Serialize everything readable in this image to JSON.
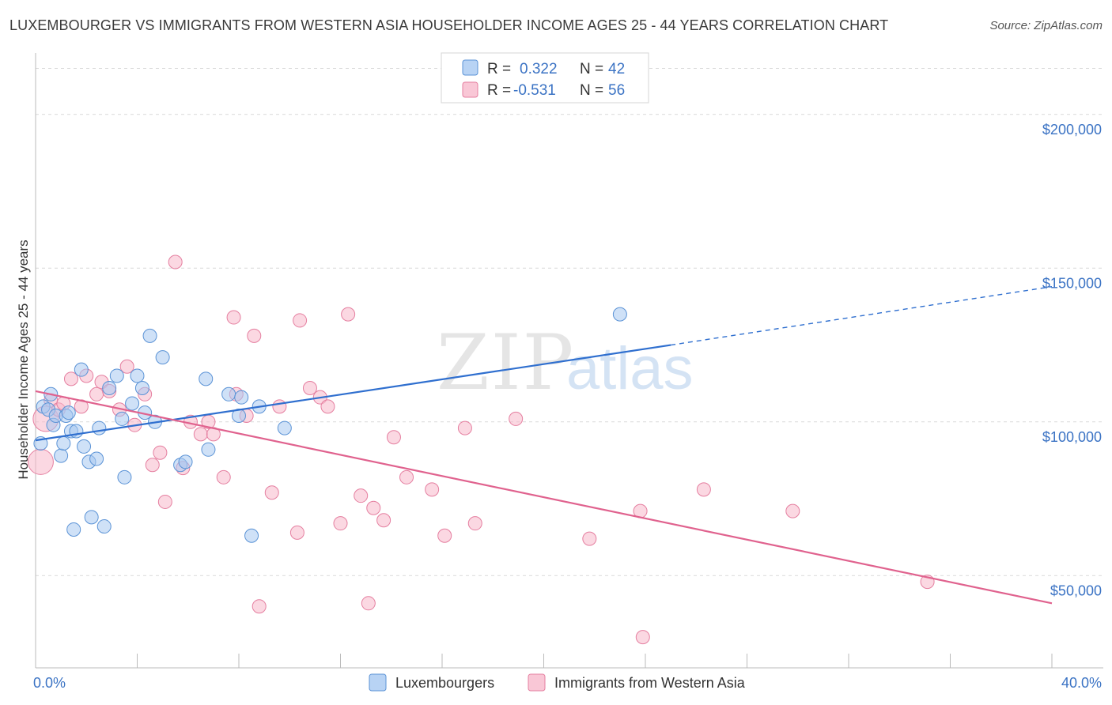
{
  "title": "LUXEMBOURGER VS IMMIGRANTS FROM WESTERN ASIA HOUSEHOLDER INCOME AGES 25 - 44 YEARS CORRELATION CHART",
  "source": "Source: ZipAtlas.com",
  "watermark": {
    "zip": "ZIP",
    "atlas": "atlas"
  },
  "legend": {
    "rows": [
      {
        "r_label": "R =",
        "r_value": "0.322",
        "n_label": "N =",
        "n_value": "42"
      },
      {
        "r_label": "R =",
        "r_value": "-0.531",
        "n_label": "N =",
        "n_value": "56"
      }
    ]
  },
  "colors": {
    "blue_fill": "#a8c8f0",
    "blue_stroke": "#5b93d6",
    "blue_line": "#2f6fcf",
    "pink_fill": "#f7b8cb",
    "pink_stroke": "#e57fa0",
    "pink_line": "#e0628e",
    "axis_text": "#3b73c4",
    "grid": "#d9d9d9"
  },
  "chart_data": {
    "type": "scatter",
    "xlabel": "",
    "ylabel": "Householder Income Ages 25 - 44 years",
    "xlim": [
      0,
      40
    ],
    "ylim": [
      20000,
      220000
    ],
    "x_tick_labels": [
      "0.0%",
      "40.0%"
    ],
    "y_ticks": [
      50000,
      100000,
      150000,
      200000
    ],
    "y_tick_labels": [
      "$50,000",
      "$100,000",
      "$150,000",
      "$200,000"
    ],
    "grid": true,
    "legend_position": "top-center",
    "series": [
      {
        "name": "Luxembourgers",
        "trend": {
          "x0": 0,
          "y0": 94000,
          "x1": 25,
          "y1": 125000,
          "dashed_to_x": 40,
          "dashed_to_y": 144000
        },
        "points": [
          [
            0.2,
            93000
          ],
          [
            0.3,
            105000
          ],
          [
            0.5,
            104000
          ],
          [
            0.6,
            109000
          ],
          [
            0.7,
            99000
          ],
          [
            0.8,
            102000
          ],
          [
            1.0,
            89000
          ],
          [
            1.1,
            93000
          ],
          [
            1.2,
            102000
          ],
          [
            1.3,
            103000
          ],
          [
            1.4,
            97000
          ],
          [
            1.5,
            65000
          ],
          [
            1.6,
            97000
          ],
          [
            1.8,
            117000
          ],
          [
            1.9,
            92000
          ],
          [
            2.1,
            87000
          ],
          [
            2.2,
            69000
          ],
          [
            2.4,
            88000
          ],
          [
            2.5,
            98000
          ],
          [
            2.7,
            66000
          ],
          [
            2.9,
            111000
          ],
          [
            3.2,
            115000
          ],
          [
            3.4,
            101000
          ],
          [
            3.5,
            82000
          ],
          [
            3.8,
            106000
          ],
          [
            4.0,
            115000
          ],
          [
            4.2,
            111000
          ],
          [
            4.3,
            103000
          ],
          [
            4.5,
            128000
          ],
          [
            4.7,
            100000
          ],
          [
            5.0,
            121000
          ],
          [
            5.7,
            86000
          ],
          [
            5.9,
            87000
          ],
          [
            6.7,
            114000
          ],
          [
            6.8,
            91000
          ],
          [
            7.6,
            109000
          ],
          [
            8.1,
            108000
          ],
          [
            8.0,
            102000
          ],
          [
            8.5,
            63000
          ],
          [
            8.8,
            105000
          ],
          [
            9.8,
            98000
          ],
          [
            23.0,
            135000
          ]
        ]
      },
      {
        "name": "Immigrants from Western Asia",
        "trend": {
          "x0": 0,
          "y0": 110000,
          "x1": 40,
          "y1": 41000
        },
        "points": [
          [
            0.2,
            87000
          ],
          [
            0.4,
            101000
          ],
          [
            0.6,
            107000
          ],
          [
            0.9,
            104000
          ],
          [
            1.1,
            106000
          ],
          [
            1.4,
            114000
          ],
          [
            1.8,
            105000
          ],
          [
            2.0,
            115000
          ],
          [
            2.4,
            109000
          ],
          [
            2.6,
            113000
          ],
          [
            2.9,
            110000
          ],
          [
            3.3,
            104000
          ],
          [
            3.6,
            118000
          ],
          [
            3.9,
            99000
          ],
          [
            4.3,
            109000
          ],
          [
            4.6,
            86000
          ],
          [
            4.9,
            90000
          ],
          [
            5.1,
            74000
          ],
          [
            5.5,
            152000
          ],
          [
            5.8,
            85000
          ],
          [
            6.1,
            100000
          ],
          [
            6.5,
            96000
          ],
          [
            6.8,
            100000
          ],
          [
            7.0,
            96000
          ],
          [
            7.4,
            82000
          ],
          [
            7.9,
            109000
          ],
          [
            7.8,
            134000
          ],
          [
            8.3,
            102000
          ],
          [
            8.6,
            128000
          ],
          [
            8.8,
            40000
          ],
          [
            9.3,
            77000
          ],
          [
            9.6,
            105000
          ],
          [
            10.3,
            64000
          ],
          [
            10.4,
            133000
          ],
          [
            10.8,
            111000
          ],
          [
            11.2,
            108000
          ],
          [
            11.5,
            105000
          ],
          [
            12.0,
            67000
          ],
          [
            12.3,
            135000
          ],
          [
            12.8,
            76000
          ],
          [
            13.1,
            41000
          ],
          [
            13.3,
            72000
          ],
          [
            13.7,
            68000
          ],
          [
            14.1,
            95000
          ],
          [
            14.6,
            82000
          ],
          [
            15.6,
            78000
          ],
          [
            16.1,
            63000
          ],
          [
            16.9,
            98000
          ],
          [
            17.3,
            67000
          ],
          [
            18.9,
            101000
          ],
          [
            21.8,
            62000
          ],
          [
            23.8,
            71000
          ],
          [
            23.9,
            30000
          ],
          [
            26.3,
            78000
          ],
          [
            29.8,
            71000
          ],
          [
            35.1,
            48000
          ]
        ]
      }
    ]
  },
  "bottom_legend": [
    "Luxembourgers",
    "Immigrants from Western Asia"
  ]
}
